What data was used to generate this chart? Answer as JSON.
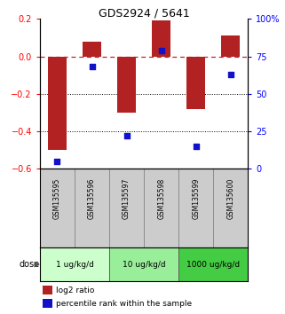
{
  "title": "GDS2924 / 5641",
  "samples": [
    "GSM135595",
    "GSM135596",
    "GSM135597",
    "GSM135598",
    "GSM135599",
    "GSM135600"
  ],
  "log2_ratio": [
    -0.5,
    0.08,
    -0.3,
    0.19,
    -0.28,
    0.11
  ],
  "percentile_rank": [
    5,
    68,
    22,
    79,
    15,
    63
  ],
  "bar_color": "#b22222",
  "dot_color": "#1111cc",
  "ylim_left": [
    -0.6,
    0.2
  ],
  "ylim_right": [
    0,
    100
  ],
  "yticks_left": [
    0.2,
    0.0,
    -0.2,
    -0.4,
    -0.6
  ],
  "yticks_right": [
    100,
    75,
    50,
    25,
    0
  ],
  "ytick_labels_right": [
    "100%",
    "75",
    "50",
    "25",
    "0"
  ],
  "doses": [
    {
      "label": "1 ug/kg/d",
      "samples": [
        "GSM135595",
        "GSM135596"
      ],
      "color": "#ccffcc"
    },
    {
      "label": "10 ug/kg/d",
      "samples": [
        "GSM135597",
        "GSM135598"
      ],
      "color": "#99ee99"
    },
    {
      "label": "1000 ug/kg/d",
      "samples": [
        "GSM135599",
        "GSM135600"
      ],
      "color": "#44cc44"
    }
  ],
  "dose_label": "dose",
  "legend_bar_label": "log2 ratio",
  "legend_dot_label": "percentile rank within the sample",
  "zero_line_color": "#cc2222",
  "bar_width": 0.55,
  "sample_box_color": "#cccccc",
  "sample_box_edge": "#888888"
}
